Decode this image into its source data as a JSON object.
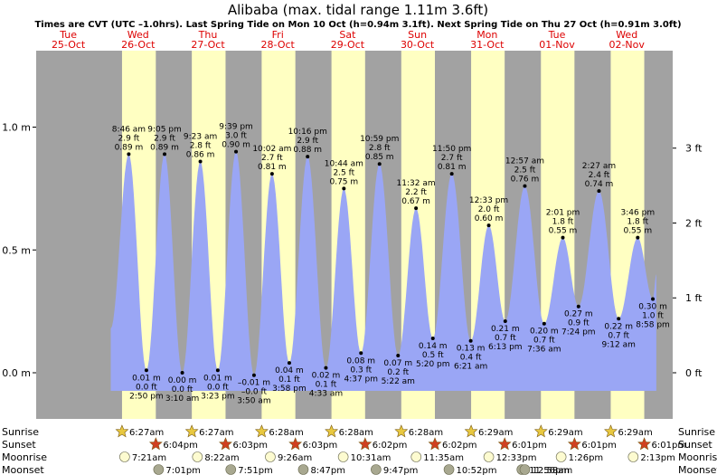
{
  "chart_data": {
    "type": "area",
    "title": "Alibaba (max. tidal range 1.11m 3.6ft)",
    "subtitle": "Times are CVT (UTC –1.0hrs). Last Spring Tide on Mon 10 Oct (h=0.94m 3.1ft). Next Spring Tide on Thu 27 Oct (h=0.91m 3.0ft)",
    "ylim": [
      -0.13,
      1.1
    ],
    "y_left_ticks": [
      {
        "value": 0.0,
        "label": "0.0 m"
      },
      {
        "value": 0.5,
        "label": "0.5 m"
      },
      {
        "value": 1.0,
        "label": "1.0 m"
      }
    ],
    "y_right_ticks": [
      {
        "value": 0.0,
        "label": "0 ft"
      },
      {
        "value": 0.3048,
        "label": "1 ft"
      },
      {
        "value": 0.6096,
        "label": "2 ft"
      },
      {
        "value": 0.9144,
        "label": "3 ft"
      }
    ],
    "days": [
      {
        "day": "Tue",
        "date": "25-Oct",
        "weekend": false
      },
      {
        "day": "Wed",
        "date": "26-Oct",
        "weekend": false
      },
      {
        "day": "Thu",
        "date": "27-Oct",
        "weekend": false
      },
      {
        "day": "Fri",
        "date": "28-Oct",
        "weekend": false
      },
      {
        "day": "Sat",
        "date": "29-Oct",
        "weekend": true
      },
      {
        "day": "Sun",
        "date": "30-Oct",
        "weekend": true
      },
      {
        "day": "Mon",
        "date": "31-Oct",
        "weekend": false
      },
      {
        "day": "Tue",
        "date": "01-Nov",
        "weekend": false
      },
      {
        "day": "Wed",
        "date": "02-Nov",
        "weekend": false
      }
    ],
    "tides": [
      {
        "type": "high",
        "day": 1,
        "time": "8:46 am",
        "m": 0.89,
        "ft": "2.9 ft",
        "ml": "0.89 m"
      },
      {
        "type": "low",
        "day": 1,
        "time": "2:50 pm",
        "m": 0.01,
        "ft": "0.0 ft",
        "ml": "0.01 m"
      },
      {
        "type": "high",
        "day": 1,
        "time": "9:05 pm",
        "m": 0.89,
        "ft": "2.9 ft",
        "ml": "0.89 m"
      },
      {
        "type": "low",
        "day": 2,
        "time": "3:10 am",
        "m": 0.0,
        "ft": "0.0 ft",
        "ml": "0.00 m"
      },
      {
        "type": "high",
        "day": 2,
        "time": "9:23 am",
        "m": 0.86,
        "ft": "2.8 ft",
        "ml": "0.86 m"
      },
      {
        "type": "low",
        "day": 2,
        "time": "3:23 pm",
        "m": 0.01,
        "ft": "0.0 ft",
        "ml": "0.01 m"
      },
      {
        "type": "high",
        "day": 2,
        "time": "9:39 pm",
        "m": 0.9,
        "ft": "3.0 ft",
        "ml": "0.90 m"
      },
      {
        "type": "low",
        "day": 3,
        "time": "3:50 am",
        "m": -0.01,
        "ft": "–0.0 ft",
        "ml": "–0.01 m"
      },
      {
        "type": "high",
        "day": 3,
        "time": "10:02 am",
        "m": 0.81,
        "ft": "2.7 ft",
        "ml": "0.81 m"
      },
      {
        "type": "low",
        "day": 3,
        "time": "3:58 pm",
        "m": 0.04,
        "ft": "0.1 ft",
        "ml": "0.04 m"
      },
      {
        "type": "high",
        "day": 3,
        "time": "10:16 pm",
        "m": 0.88,
        "ft": "2.9 ft",
        "ml": "0.88 m"
      },
      {
        "type": "low",
        "day": 4,
        "time": "4:33 am",
        "m": 0.02,
        "ft": "0.1 ft",
        "ml": "0.02 m"
      },
      {
        "type": "high",
        "day": 4,
        "time": "10:44 am",
        "m": 0.75,
        "ft": "2.5 ft",
        "ml": "0.75 m"
      },
      {
        "type": "low",
        "day": 4,
        "time": "4:37 pm",
        "m": 0.08,
        "ft": "0.3 ft",
        "ml": "0.08 m"
      },
      {
        "type": "high",
        "day": 4,
        "time": "10:59 pm",
        "m": 0.85,
        "ft": "2.8 ft",
        "ml": "0.85 m"
      },
      {
        "type": "low",
        "day": 5,
        "time": "5:22 am",
        "m": 0.07,
        "ft": "0.2 ft",
        "ml": "0.07 m"
      },
      {
        "type": "high",
        "day": 5,
        "time": "11:32 am",
        "m": 0.67,
        "ft": "2.2 ft",
        "ml": "0.67 m"
      },
      {
        "type": "low",
        "day": 5,
        "time": "5:20 pm",
        "m": 0.14,
        "ft": "0.5 ft",
        "ml": "0.14 m"
      },
      {
        "type": "high",
        "day": 5,
        "time": "11:50 pm",
        "m": 0.81,
        "ft": "2.7 ft",
        "ml": "0.81 m"
      },
      {
        "type": "low",
        "day": 6,
        "time": "6:21 am",
        "m": 0.13,
        "ft": "0.4 ft",
        "ml": "0.13 m"
      },
      {
        "type": "high",
        "day": 6,
        "time": "12:33 pm",
        "m": 0.6,
        "ft": "2.0 ft",
        "ml": "0.60 m"
      },
      {
        "type": "low",
        "day": 6,
        "time": "6:13 pm",
        "m": 0.21,
        "ft": "0.7 ft",
        "ml": "0.21 m"
      },
      {
        "type": "high",
        "day": 7,
        "time": "12:57 am",
        "m": 0.76,
        "ft": "2.5 ft",
        "ml": "0.76 m"
      },
      {
        "type": "low",
        "day": 7,
        "time": "7:36 am",
        "m": 0.2,
        "ft": "0.7 ft",
        "ml": "0.20 m"
      },
      {
        "type": "high",
        "day": 7,
        "time": "2:01 pm",
        "m": 0.55,
        "ft": "1.8 ft",
        "ml": "0.55 m"
      },
      {
        "type": "low",
        "day": 7,
        "time": "7:24 pm",
        "m": 0.27,
        "ft": "0.9 ft",
        "ml": "0.27 m"
      },
      {
        "type": "high",
        "day": 8,
        "time": "2:27 am",
        "m": 0.74,
        "ft": "2.4 ft",
        "ml": "0.74 m"
      },
      {
        "type": "low",
        "day": 8,
        "time": "9:12 am",
        "m": 0.22,
        "ft": "0.7 ft",
        "ml": "0.22 m"
      },
      {
        "type": "high",
        "day": 8,
        "time": "3:46 pm",
        "m": 0.55,
        "ft": "1.8 ft",
        "ml": "0.55 m"
      },
      {
        "type": "low",
        "day": 8,
        "time": "8:58 pm",
        "m": 0.3,
        "ft": "1.0 ft",
        "ml": "0.30 m"
      }
    ],
    "astro": {
      "row_labels": [
        "Sunrise",
        "Sunset",
        "Moonrise",
        "Moonset"
      ],
      "sunrise": [
        {
          "day": 1,
          "time": "6:27am"
        },
        {
          "day": 2,
          "time": "6:27am"
        },
        {
          "day": 3,
          "time": "6:28am"
        },
        {
          "day": 4,
          "time": "6:28am"
        },
        {
          "day": 5,
          "time": "6:28am"
        },
        {
          "day": 6,
          "time": "6:29am"
        },
        {
          "day": 7,
          "time": "6:29am"
        },
        {
          "day": 8,
          "time": "6:29am"
        }
      ],
      "sunset": [
        {
          "day": 1,
          "time": "6:04pm"
        },
        {
          "day": 2,
          "time": "6:03pm"
        },
        {
          "day": 3,
          "time": "6:03pm"
        },
        {
          "day": 4,
          "time": "6:02pm"
        },
        {
          "day": 5,
          "time": "6:02pm"
        },
        {
          "day": 6,
          "time": "6:01pm"
        },
        {
          "day": 7,
          "time": "6:01pm"
        },
        {
          "day": 8,
          "time": "6:01pm"
        }
      ],
      "moonrise": [
        {
          "day": 1,
          "time": "7:21am"
        },
        {
          "day": 2,
          "time": "8:22am"
        },
        {
          "day": 3,
          "time": "9:26am"
        },
        {
          "day": 4,
          "time": "10:31am"
        },
        {
          "day": 5,
          "time": "11:35am"
        },
        {
          "day": 6,
          "time": "12:33pm"
        },
        {
          "day": 7,
          "time": "1:26pm"
        },
        {
          "day": 8,
          "time": "2:13pm"
        }
      ],
      "moonset": [
        {
          "day": 1,
          "time": "7:01pm"
        },
        {
          "day": 2,
          "time": "7:51pm"
        },
        {
          "day": 3,
          "time": "8:47pm"
        },
        {
          "day": 4,
          "time": "9:47pm"
        },
        {
          "day": 5,
          "time": "10:52pm"
        },
        {
          "day": 6,
          "time": "11:56pm"
        },
        {
          "day": 7,
          "time": "12:58am"
        }
      ]
    },
    "colors": {
      "water": "#9aa6f5",
      "day_band": "#ffffc2",
      "night_band": "#a2a2a2",
      "day_label": "#dd0000",
      "weekend_label": "#dd0000",
      "sun_icon": "#e8c840",
      "sunset_icon": "#d04020",
      "moonrise_icon": "#fdfbd0",
      "moonset_icon": "#a8a890"
    }
  }
}
